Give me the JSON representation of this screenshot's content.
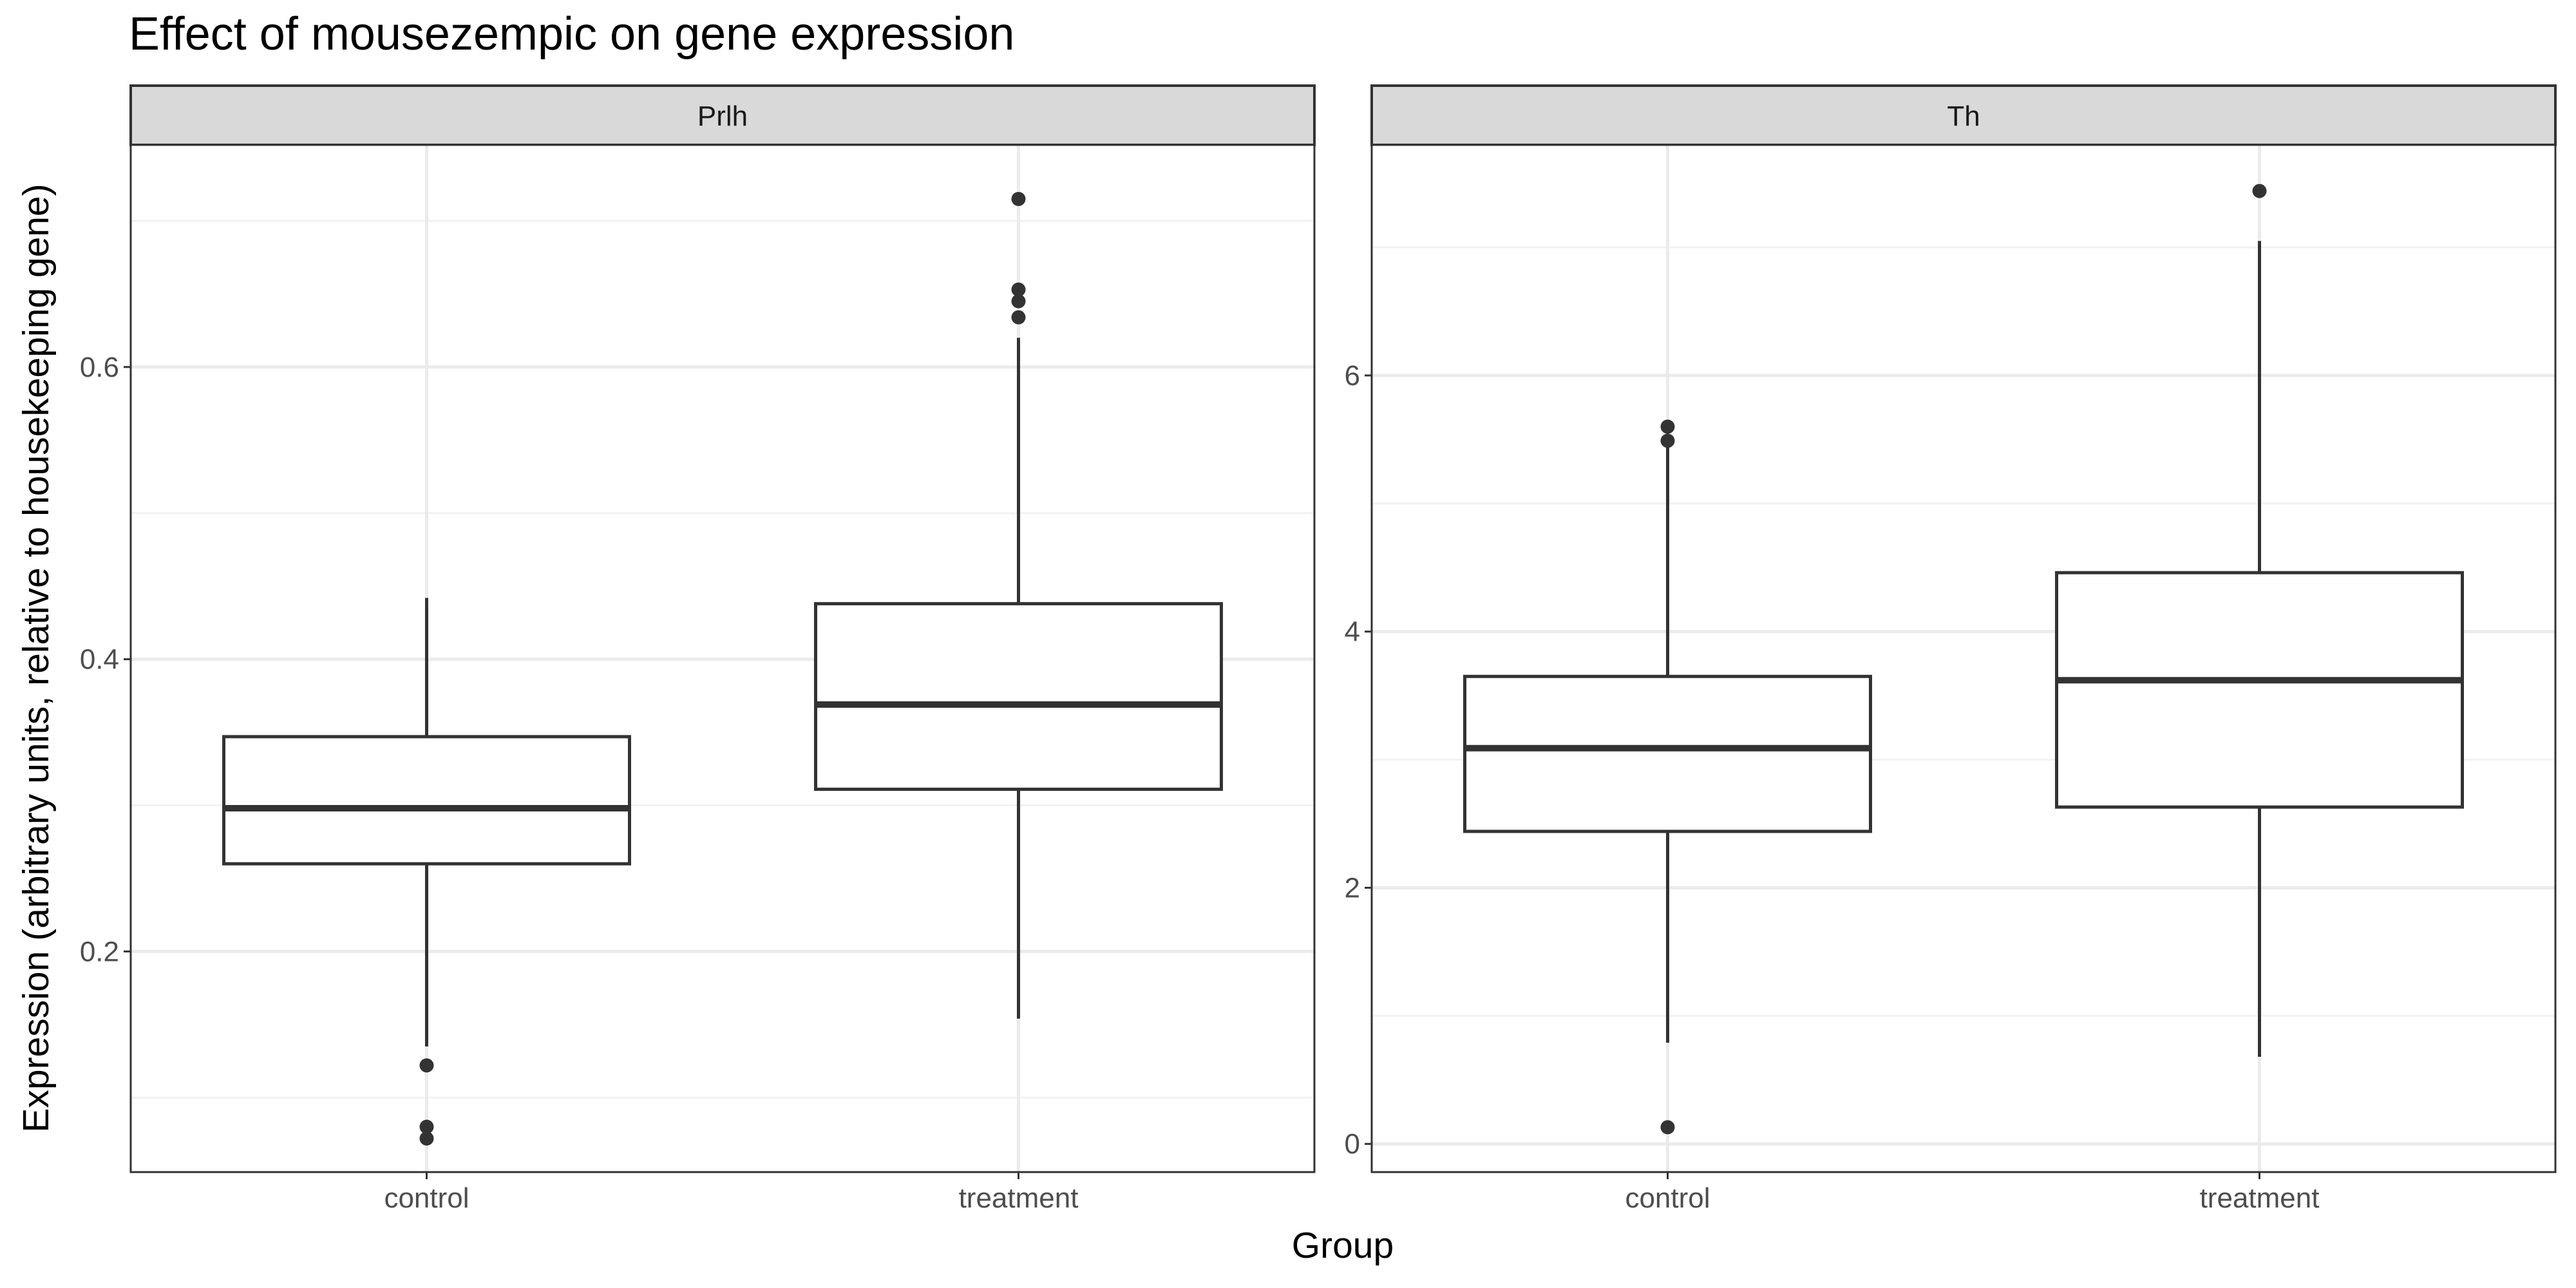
{
  "chart_data": {
    "type": "boxplot",
    "title": "Effect of mousezempic on gene expression",
    "xlabel": "Group",
    "ylabel": "Expression (arbitrary units, relative to housekeeping gene)",
    "categories": [
      "control",
      "treatment"
    ],
    "grid": true,
    "facets": [
      {
        "name": "Prlh",
        "ylim": [
          0.049,
          0.752
        ],
        "ticks": [
          0.2,
          0.4,
          0.6
        ],
        "tick_labels": [
          "0.2",
          "0.4",
          "0.6"
        ],
        "boxes": [
          {
            "group": "control",
            "whisker_low": 0.135,
            "q1": 0.26,
            "median": 0.298,
            "q3": 0.347,
            "whisker_high": 0.442,
            "outliers": [
              0.122,
              0.08,
              0.072
            ]
          },
          {
            "group": "treatment",
            "whisker_low": 0.154,
            "q1": 0.311,
            "median": 0.369,
            "q3": 0.438,
            "whisker_high": 0.62,
            "outliers": [
              0.715,
              0.653,
              0.645,
              0.634
            ]
          }
        ]
      },
      {
        "name": "Th",
        "ylim": [
          -0.22,
          7.8
        ],
        "ticks": [
          0,
          2,
          4,
          6
        ],
        "tick_labels": [
          "0",
          "2",
          "4",
          "6"
        ],
        "boxes": [
          {
            "group": "control",
            "whisker_low": 0.79,
            "q1": 2.44,
            "median": 3.09,
            "q3": 3.65,
            "whisker_high": 5.49,
            "outliers": [
              0.13,
              5.49,
              5.6
            ]
          },
          {
            "group": "treatment",
            "whisker_low": 0.68,
            "q1": 2.63,
            "median": 3.62,
            "q3": 4.46,
            "whisker_high": 7.05,
            "outliers": [
              7.44
            ]
          }
        ]
      }
    ]
  }
}
